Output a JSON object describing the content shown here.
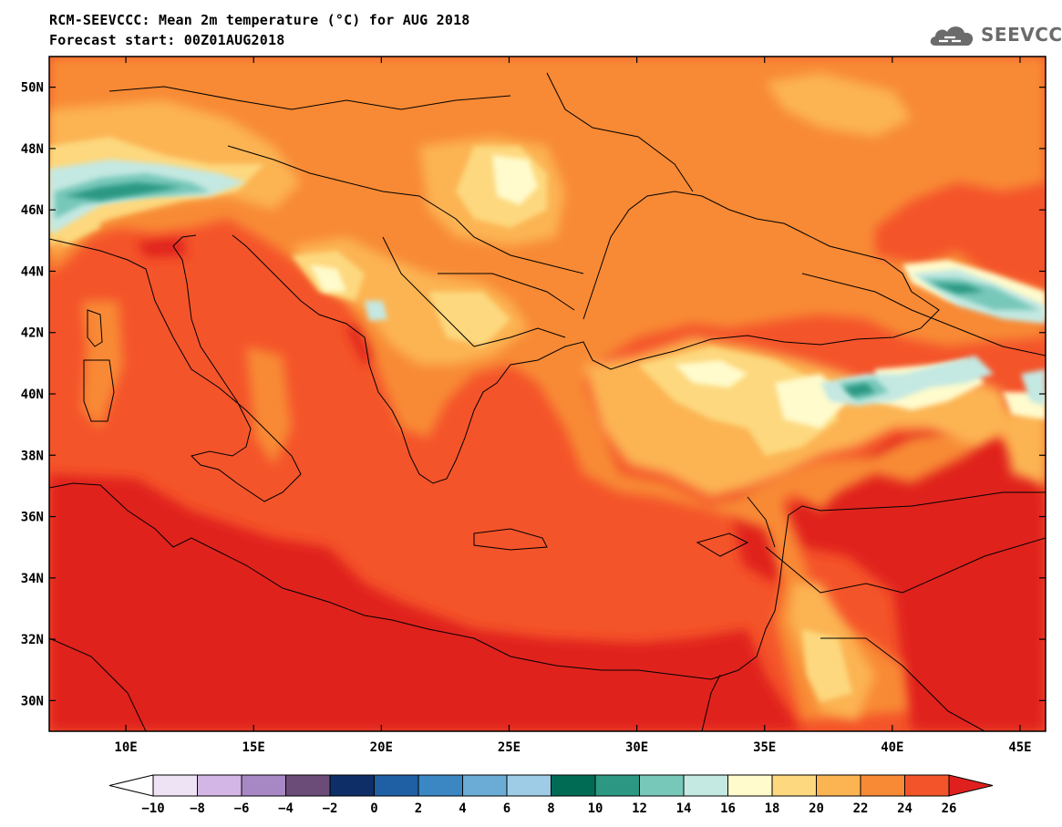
{
  "header": {
    "title_line1": "RCM-SEEVCCC: Mean 2m temperature (°C) for AUG 2018",
    "title_line2": "Forecast start: 00Z01AUG2018"
  },
  "logo": {
    "text": "SEEVCCC",
    "icon": "cloud-icon"
  },
  "map": {
    "variable": "Mean 2m temperature",
    "unit": "°C",
    "lon_range": [
      7,
      46
    ],
    "lat_range": [
      29,
      51
    ],
    "lat_ticks": [
      {
        "value": 50,
        "label": "50N"
      },
      {
        "value": 48,
        "label": "48N"
      },
      {
        "value": 46,
        "label": "46N"
      },
      {
        "value": 44,
        "label": "44N"
      },
      {
        "value": 42,
        "label": "42N"
      },
      {
        "value": 40,
        "label": "40N"
      },
      {
        "value": 38,
        "label": "38N"
      },
      {
        "value": 36,
        "label": "36N"
      },
      {
        "value": 34,
        "label": "34N"
      },
      {
        "value": 32,
        "label": "32N"
      },
      {
        "value": 30,
        "label": "30N"
      }
    ],
    "lon_ticks": [
      {
        "value": 10,
        "label": "10E"
      },
      {
        "value": 15,
        "label": "15E"
      },
      {
        "value": 20,
        "label": "20E"
      },
      {
        "value": 25,
        "label": "25E"
      },
      {
        "value": 30,
        "label": "30E"
      },
      {
        "value": 35,
        "label": "35E"
      },
      {
        "value": 40,
        "label": "40E"
      },
      {
        "value": 45,
        "label": "45E"
      }
    ]
  },
  "colorbar": {
    "labels": [
      "-10",
      "-8",
      "-6",
      "-4",
      "-2",
      "0",
      "2",
      "4",
      "6",
      "8",
      "10",
      "12",
      "14",
      "16",
      "18",
      "20",
      "22",
      "24",
      "26"
    ],
    "colors": [
      "#ede3f4",
      "#d3b6e5",
      "#a788c4",
      "#6b4c78",
      "#0d2e66",
      "#1f5fa4",
      "#3b87c4",
      "#6aacd6",
      "#9ecbe5",
      "#006b54",
      "#2c9883",
      "#78c8ba",
      "#c4e8e2",
      "#fffbcc",
      "#fdd87e",
      "#fcb452",
      "#f88a36",
      "#f4542a"
    ],
    "under_color": "#ffffff",
    "over_color": "#e0201f"
  }
}
